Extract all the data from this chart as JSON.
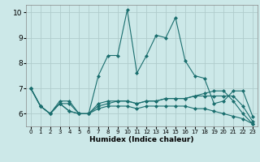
{
  "xlabel": "Humidex (Indice chaleur)",
  "background_color": "#cce8e8",
  "grid_color": "#b0cccc",
  "line_color": "#1a6e6e",
  "xlim": [
    -0.5,
    23.5
  ],
  "ylim": [
    5.5,
    10.3
  ],
  "yticks": [
    6,
    7,
    8,
    9,
    10
  ],
  "xticks": [
    0,
    1,
    2,
    3,
    4,
    5,
    6,
    7,
    8,
    9,
    10,
    11,
    12,
    13,
    14,
    15,
    16,
    17,
    18,
    19,
    20,
    21,
    22,
    23
  ],
  "series": [
    [
      7.0,
      6.3,
      6.0,
      6.5,
      6.5,
      6.0,
      6.0,
      7.5,
      8.3,
      8.3,
      10.1,
      7.6,
      8.3,
      9.1,
      9.0,
      9.8,
      8.1,
      7.5,
      7.4,
      6.4,
      6.5,
      6.9,
      6.9,
      5.9
    ],
    [
      7.0,
      6.3,
      6.0,
      6.4,
      6.4,
      6.0,
      6.0,
      6.4,
      6.5,
      6.5,
      6.5,
      6.4,
      6.5,
      6.5,
      6.6,
      6.6,
      6.6,
      6.7,
      6.8,
      6.9,
      6.9,
      6.5,
      6.0,
      5.6
    ],
    [
      7.0,
      6.3,
      6.0,
      6.4,
      6.1,
      6.0,
      6.0,
      6.3,
      6.4,
      6.5,
      6.5,
      6.4,
      6.5,
      6.5,
      6.6,
      6.6,
      6.6,
      6.7,
      6.7,
      6.7,
      6.7,
      6.7,
      6.3,
      5.7
    ],
    [
      7.0,
      6.3,
      6.0,
      6.4,
      6.1,
      6.0,
      6.0,
      6.2,
      6.3,
      6.3,
      6.3,
      6.2,
      6.3,
      6.3,
      6.3,
      6.3,
      6.3,
      6.2,
      6.2,
      6.1,
      6.0,
      5.9,
      5.8,
      5.6
    ]
  ]
}
